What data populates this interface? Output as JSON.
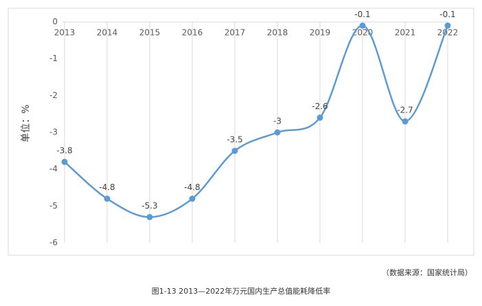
{
  "chart_data": {
    "type": "line",
    "y_label": "单位：%",
    "categories": [
      "2013",
      "2014",
      "2015",
      "2016",
      "2017",
      "2018",
      "2019",
      "2020",
      "2021",
      "2022"
    ],
    "values": [
      -3.8,
      -4.8,
      -5.3,
      -4.8,
      -3.5,
      -3,
      -2.6,
      -0.1,
      -2.7,
      -0.1
    ],
    "color": "#5b9bd5",
    "ylim": [
      -6,
      0
    ],
    "yticks": [
      0,
      -1,
      -2,
      -3,
      -4,
      -5,
      -6
    ],
    "grid": "x",
    "smooth": true,
    "source": "（数据来源：国家统计局）",
    "caption": "图1-13  2013—2022年万元国内生产总值能耗降低率"
  }
}
